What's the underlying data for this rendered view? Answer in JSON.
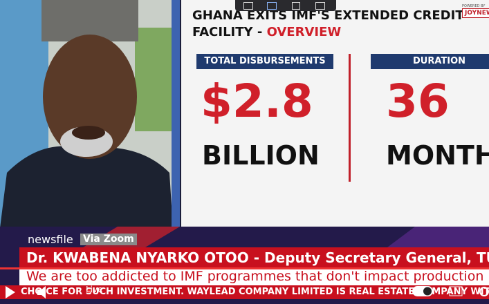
{
  "graphic": {
    "title_line1": "GHANA EXITS IMF'S EXTENDED CREDIT",
    "title_line2": "FACILITY - ",
    "title_highlight": "OVERVIEW",
    "logo_small": "POWERED BY",
    "logo": "JOYNEWS",
    "stats": [
      {
        "label": "TOTAL DISBURSEMENTS",
        "figure": "$2.8",
        "unit": "BILLION"
      },
      {
        "label": "DURATION",
        "figure": "36",
        "unit": "MONTHS"
      }
    ]
  },
  "lower_third": {
    "show": "newsfile",
    "source": "Via Zoom",
    "name": "Dr. KWABENA NYARKO OTOO - Deputy Secretary General, TUC",
    "quote": "We are too addicted to IMF programmes that don't impact production",
    "ticker": "CHOICE FOR SUCH INVESTMENT. WAYLEAD COMPANY LIMITED IS REAL ESTATE COMPANY WITH"
  },
  "player": {
    "live": "Live"
  }
}
